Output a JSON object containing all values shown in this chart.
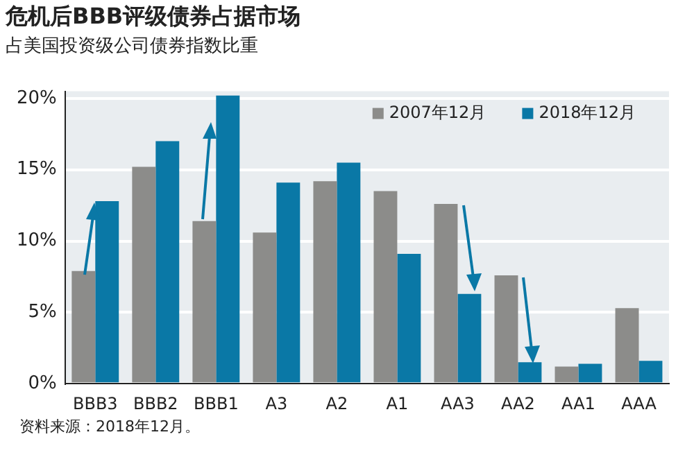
{
  "chart_data": {
    "type": "bar",
    "title": "危机后BBB评级债券占据市场",
    "subtitle": "占美国投资级公司债券指数比重",
    "categories": [
      "BBB3",
      "BBB2",
      "BBB1",
      "A3",
      "A2",
      "A1",
      "AA3",
      "AA2",
      "AA1",
      "AAA"
    ],
    "series": [
      {
        "name": "2007年12月",
        "color": "#8c8c8a",
        "values": [
          7.9,
          15.2,
          11.4,
          10.6,
          14.2,
          13.5,
          12.6,
          7.6,
          1.2,
          5.3
        ]
      },
      {
        "name": "2018年12月",
        "color": "#0a78a6",
        "values": [
          12.8,
          17.0,
          20.2,
          14.1,
          15.5,
          9.1,
          6.3,
          1.5,
          1.4,
          1.6
        ]
      }
    ],
    "ylim": [
      0,
      20.5
    ],
    "yticks": [
      {
        "value": 0,
        "label": "0%"
      },
      {
        "value": 5,
        "label": "5%"
      },
      {
        "value": 10,
        "label": "10%"
      },
      {
        "value": 15,
        "label": "15%"
      },
      {
        "value": 20,
        "label": "20%"
      }
    ],
    "grid": "y",
    "legend": "top right",
    "annotations": [
      "资料来源：2018年12月。"
    ]
  }
}
